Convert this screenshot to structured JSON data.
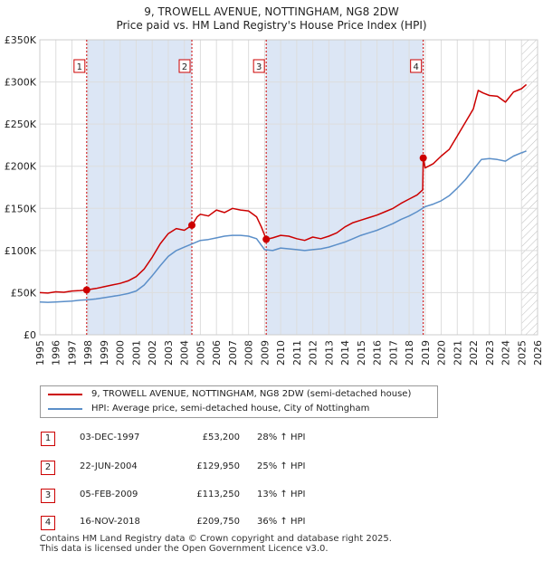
{
  "title_line1": "9, TROWELL AVENUE, NOTTINGHAM, NG8 2DW",
  "title_line2": "Price paid vs. HM Land Registry's House Price Index (HPI)",
  "legend": {
    "property": "9, TROWELL AVENUE, NOTTINGHAM, NG8 2DW (semi-detached house)",
    "hpi": "HPI: Average price, semi-detached house, City of Nottingham"
  },
  "transactions": [
    {
      "num": "1",
      "date": "03-DEC-1997",
      "price": "£53,200",
      "hpi_change": "28% ↑ HPI"
    },
    {
      "num": "2",
      "date": "22-JUN-2004",
      "price": "£129,950",
      "hpi_change": "25% ↑ HPI"
    },
    {
      "num": "3",
      "date": "05-FEB-2009",
      "price": "£113,250",
      "hpi_change": "13% ↑ HPI"
    },
    {
      "num": "4",
      "date": "16-NOV-2018",
      "price": "£209,750",
      "hpi_change": "36% ↑ HPI"
    }
  ],
  "footer": {
    "line1": "Contains HM Land Registry data © Crown copyright and database right 2025.",
    "line2": "This data is licensed under the Open Government Licence v3.0."
  },
  "colors": {
    "property": "#cc0000",
    "hpi": "#5b8fc9",
    "shade": "#dce6f5",
    "grid": "#dddddd",
    "marker_line": "#cc0000"
  },
  "chart_data": {
    "type": "line",
    "xlim": [
      1995,
      2026
    ],
    "ylim": [
      0,
      350000
    ],
    "x_ticks": [
      "1995",
      "1996",
      "1997",
      "1998",
      "1999",
      "2000",
      "2001",
      "2002",
      "2003",
      "2004",
      "2005",
      "2006",
      "2007",
      "2008",
      "2009",
      "2010",
      "2011",
      "2012",
      "2013",
      "2014",
      "2015",
      "2016",
      "2017",
      "2018",
      "2019",
      "2020",
      "2021",
      "2022",
      "2023",
      "2024",
      "2025",
      "2026"
    ],
    "y_ticks": [
      {
        "value": 0,
        "label": "£0"
      },
      {
        "value": 50000,
        "label": "£50K"
      },
      {
        "value": 100000,
        "label": "£100K"
      },
      {
        "value": 150000,
        "label": "£150K"
      },
      {
        "value": 200000,
        "label": "£200K"
      },
      {
        "value": 250000,
        "label": "£250K"
      },
      {
        "value": 300000,
        "label": "£300K"
      },
      {
        "value": 350000,
        "label": "£350K"
      }
    ],
    "shaded_periods": [
      [
        1997.92,
        2004.47
      ],
      [
        2009.1,
        2018.88
      ]
    ],
    "future_hatch_start": 2025.0,
    "sales": [
      {
        "num": "1",
        "x": 1997.92,
        "y": 53200
      },
      {
        "num": "2",
        "x": 2004.47,
        "y": 129950
      },
      {
        "num": "3",
        "x": 2009.1,
        "y": 113250
      },
      {
        "num": "4",
        "x": 2018.88,
        "y": 209750
      }
    ],
    "series": [
      {
        "name": "property",
        "x": [
          1995.0,
          1995.5,
          1996.0,
          1996.5,
          1997.0,
          1997.5,
          1997.92,
          1998.5,
          1999.0,
          1999.5,
          2000.0,
          2000.5,
          2001.0,
          2001.5,
          2002.0,
          2002.5,
          2003.0,
          2003.5,
          2004.0,
          2004.47,
          2004.8,
          2005.0,
          2005.5,
          2006.0,
          2006.5,
          2007.0,
          2007.5,
          2008.0,
          2008.5,
          2008.8,
          2009.1,
          2009.5,
          2010.0,
          2010.5,
          2011.0,
          2011.5,
          2012.0,
          2012.5,
          2013.0,
          2013.5,
          2014.0,
          2014.5,
          2015.0,
          2015.5,
          2016.0,
          2016.5,
          2017.0,
          2017.5,
          2018.0,
          2018.5,
          2018.85,
          2018.88,
          2019.0,
          2019.5,
          2020.0,
          2020.5,
          2021.0,
          2021.5,
          2022.0,
          2022.3,
          2022.6,
          2023.0,
          2023.5,
          2024.0,
          2024.5,
          2025.0,
          2025.3
        ],
        "y": [
          50000,
          49500,
          51000,
          50500,
          52000,
          52500,
          53200,
          55000,
          57000,
          59000,
          61000,
          64000,
          69000,
          78000,
          92000,
          108000,
          120000,
          126000,
          124000,
          129950,
          140000,
          143000,
          141000,
          148000,
          145000,
          150000,
          148000,
          147000,
          140000,
          128000,
          113250,
          115000,
          118000,
          117000,
          114000,
          112000,
          116000,
          114000,
          117000,
          121000,
          128000,
          133000,
          136000,
          139000,
          142000,
          146000,
          150000,
          156000,
          161000,
          166000,
          172000,
          209750,
          198000,
          203000,
          212000,
          220000,
          236000,
          252000,
          268000,
          290000,
          287000,
          284000,
          283000,
          276000,
          288000,
          292000,
          297000
        ]
      },
      {
        "name": "hpi",
        "x": [
          1995.0,
          1995.5,
          1996.0,
          1996.5,
          1997.0,
          1997.5,
          1998.0,
          1998.5,
          1999.0,
          1999.5,
          2000.0,
          2000.5,
          2001.0,
          2001.5,
          2002.0,
          2002.5,
          2003.0,
          2003.5,
          2004.0,
          2004.5,
          2005.0,
          2005.5,
          2006.0,
          2006.5,
          2007.0,
          2007.5,
          2008.0,
          2008.5,
          2009.0,
          2009.5,
          2010.0,
          2010.5,
          2011.0,
          2011.5,
          2012.0,
          2012.5,
          2013.0,
          2013.5,
          2014.0,
          2014.5,
          2015.0,
          2015.5,
          2016.0,
          2016.5,
          2017.0,
          2017.5,
          2018.0,
          2018.5,
          2019.0,
          2019.5,
          2020.0,
          2020.5,
          2021.0,
          2021.5,
          2022.0,
          2022.5,
          2023.0,
          2023.5,
          2024.0,
          2024.5,
          2025.0,
          2025.3
        ],
        "y": [
          39000,
          38500,
          39000,
          39500,
          40000,
          41000,
          41500,
          42500,
          44000,
          45500,
          47000,
          49000,
          52000,
          59000,
          70000,
          82000,
          93000,
          100000,
          104000,
          108000,
          112000,
          113000,
          115000,
          117000,
          118000,
          118000,
          117000,
          114000,
          101000,
          100000,
          103000,
          102000,
          101000,
          100000,
          101000,
          102000,
          104000,
          107000,
          110000,
          114000,
          118000,
          121000,
          124000,
          128000,
          132000,
          137000,
          141000,
          146000,
          152000,
          155000,
          159000,
          165000,
          174000,
          184000,
          196000,
          208000,
          209000,
          208000,
          206000,
          212000,
          216000,
          218000
        ]
      }
    ]
  }
}
